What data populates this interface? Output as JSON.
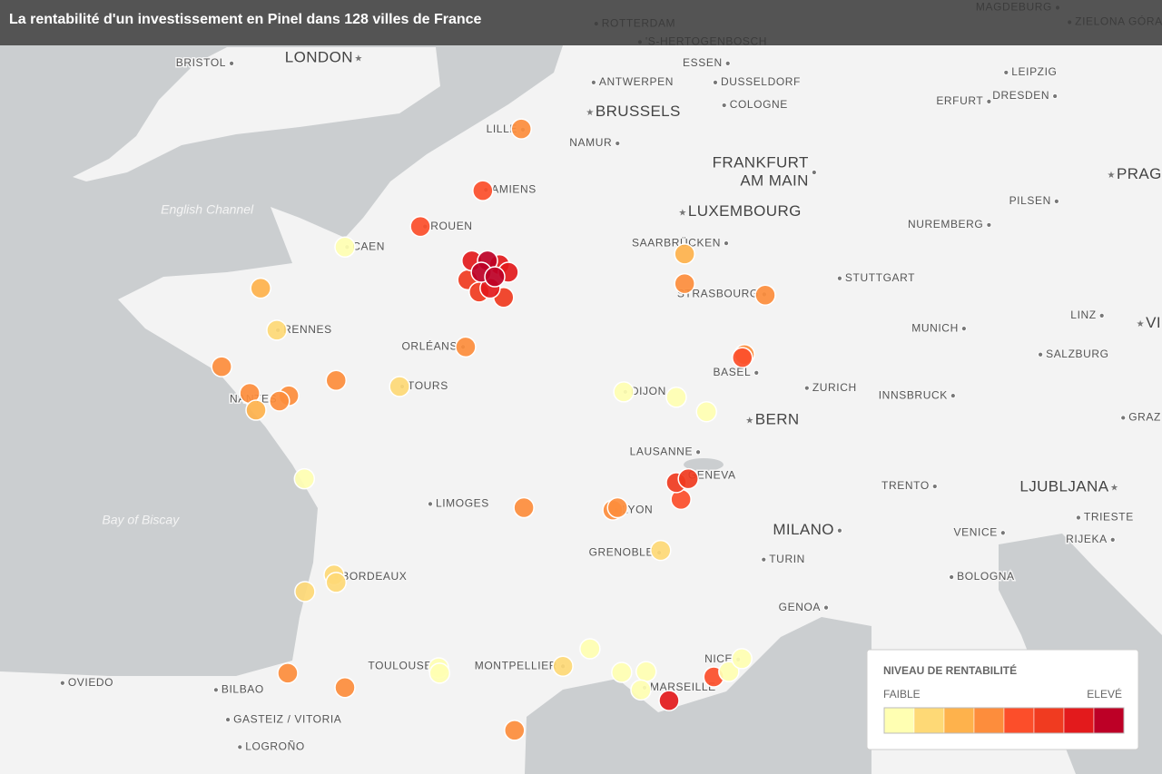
{
  "title": "La rentabilité d'un investissement en Pinel dans 128 villes de France",
  "legend": {
    "title": "NIVEAU DE RENTABILITÉ",
    "low": "FAIBLE",
    "high": "ELEVÉ",
    "colors": [
      "#ffffb2",
      "#fed976",
      "#feb24c",
      "#fd8d3c",
      "#fc4e2a",
      "#f03b20",
      "#e31a1c",
      "#bd0026"
    ]
  },
  "water": [
    {
      "name": "English Channel",
      "lon": -3.04,
      "lat": 49.67
    },
    {
      "name": "Bay of Biscay",
      "lon": -4.32,
      "lat": 45.6
    }
  ],
  "labels": [
    {
      "name": "BRISTOL",
      "lon": -2.57,
      "lat": 51.6,
      "side": "left"
    },
    {
      "name": "LONDON",
      "lon": -0.13,
      "lat": 51.67,
      "side": "left",
      "big": true,
      "capital": true
    },
    {
      "name": "ROTTERDAM",
      "lon": 4.44,
      "lat": 52.12,
      "side": "right"
    },
    {
      "name": "'S-HERTOGENBOSCH",
      "lon": 5.28,
      "lat": 51.88,
      "side": "right"
    },
    {
      "name": "MAGDEBURG",
      "lon": 13.31,
      "lat": 52.33,
      "side": "left"
    },
    {
      "name": "ZIELONA GÓRA",
      "lon": 13.54,
      "lat": 52.14,
      "side": "right"
    },
    {
      "name": "ESSEN",
      "lon": 6.97,
      "lat": 51.6,
      "side": "left"
    },
    {
      "name": "ANTWERPEN",
      "lon": 4.39,
      "lat": 51.35,
      "side": "right"
    },
    {
      "name": "DUSSELDORF",
      "lon": 6.73,
      "lat": 51.35,
      "side": "right"
    },
    {
      "name": "LEIPZIG",
      "lon": 12.32,
      "lat": 51.48,
      "side": "right"
    },
    {
      "name": "DRESDEN",
      "lon": 13.26,
      "lat": 51.17,
      "side": "left"
    },
    {
      "name": "BRUSSELS",
      "lon": 4.32,
      "lat": 50.96,
      "side": "right",
      "big": true,
      "capital": true
    },
    {
      "name": "COLOGNE",
      "lon": 6.9,
      "lat": 51.05,
      "side": "right"
    },
    {
      "name": "ERFURT",
      "lon": 11.99,
      "lat": 51.1,
      "side": "left"
    },
    {
      "name": "LILLE",
      "lon": 3.03,
      "lat": 50.73,
      "side": "left"
    },
    {
      "name": "NAMUR",
      "lon": 4.85,
      "lat": 50.55,
      "side": "left"
    },
    {
      "name": [
        "FRANKFURT",
        "AM MAIN"
      ],
      "lon": 8.63,
      "lat": 50.17,
      "side": "left",
      "big": true
    },
    {
      "name": "PRAG",
      "lon": 14.34,
      "lat": 50.14,
      "side": "right",
      "big": true,
      "capital": true
    },
    {
      "name": "AMIENS",
      "lon": 2.32,
      "lat": 49.94,
      "side": "right"
    },
    {
      "name": "PILSEN",
      "lon": 13.29,
      "lat": 49.79,
      "side": "left"
    },
    {
      "name": "LUXEMBOURG",
      "lon": 6.1,
      "lat": 49.65,
      "side": "right",
      "big": true,
      "capital": true
    },
    {
      "name": "NUREMBERG",
      "lon": 11.99,
      "lat": 49.48,
      "side": "left"
    },
    {
      "name": "ROUEN",
      "lon": 1.15,
      "lat": 49.46,
      "side": "right"
    },
    {
      "name": "SAARBRÜCKEN",
      "lon": 6.94,
      "lat": 49.24,
      "side": "left"
    },
    {
      "name": "CAEN",
      "lon": -0.35,
      "lat": 49.19,
      "side": "right"
    },
    {
      "name": "STUTTGART",
      "lon": 9.12,
      "lat": 48.78,
      "side": "right"
    },
    {
      "name": "STRASBOURG",
      "lon": 7.67,
      "lat": 48.57,
      "side": "left"
    },
    {
      "name": "RENNES",
      "lon": -1.68,
      "lat": 48.1,
      "side": "right"
    },
    {
      "name": "MUNICH",
      "lon": 11.51,
      "lat": 48.12,
      "side": "left"
    },
    {
      "name": "LINZ",
      "lon": 14.16,
      "lat": 48.29,
      "side": "left"
    },
    {
      "name": "VI",
      "lon": 14.9,
      "lat": 48.19,
      "side": "right",
      "big": true,
      "capital": true
    },
    {
      "name": "ORLÉANS",
      "lon": 1.88,
      "lat": 47.88,
      "side": "left"
    },
    {
      "name": "SALZBURG",
      "lon": 12.98,
      "lat": 47.78,
      "side": "right"
    },
    {
      "name": "BASEL",
      "lon": 7.52,
      "lat": 47.54,
      "side": "left"
    },
    {
      "name": "ZURICH",
      "lon": 8.49,
      "lat": 47.34,
      "side": "right"
    },
    {
      "name": "TOURS",
      "lon": 0.71,
      "lat": 47.36,
      "side": "right"
    },
    {
      "name": "DIJON",
      "lon": 5.0,
      "lat": 47.29,
      "side": "right"
    },
    {
      "name": "NANTES",
      "lon": -1.59,
      "lat": 47.19,
      "side": "left"
    },
    {
      "name": "INNSBRUCK",
      "lon": 11.3,
      "lat": 47.24,
      "side": "left"
    },
    {
      "name": "BERN",
      "lon": 7.39,
      "lat": 46.92,
      "side": "right",
      "big": true,
      "capital": true
    },
    {
      "name": "GRAZ",
      "lon": 14.57,
      "lat": 46.95,
      "side": "right"
    },
    {
      "name": "LAUSANNE",
      "lon": 6.4,
      "lat": 46.5,
      "side": "left"
    },
    {
      "name": "GENEVA",
      "lon": 6.1,
      "lat": 46.19,
      "side": "right"
    },
    {
      "name": "TRENTO",
      "lon": 10.95,
      "lat": 46.05,
      "side": "left"
    },
    {
      "name": "LJUBLJANA",
      "lon": 14.4,
      "lat": 46.04,
      "side": "left",
      "big": true,
      "capital": true
    },
    {
      "name": "LIMOGES",
      "lon": 1.25,
      "lat": 45.82,
      "side": "right"
    },
    {
      "name": "LYON",
      "lon": 4.83,
      "lat": 45.74,
      "side": "right"
    },
    {
      "name": "TRIESTE",
      "lon": 13.71,
      "lat": 45.64,
      "side": "right"
    },
    {
      "name": "MILANO",
      "lon": 9.12,
      "lat": 45.47,
      "side": "left",
      "big": true
    },
    {
      "name": "VENICE",
      "lon": 12.26,
      "lat": 45.44,
      "side": "left"
    },
    {
      "name": "RIJEKA",
      "lon": 14.37,
      "lat": 45.35,
      "side": "left"
    },
    {
      "name": "GRENOBLE",
      "lon": 5.65,
      "lat": 45.18,
      "side": "left"
    },
    {
      "name": "TURIN",
      "lon": 7.66,
      "lat": 45.09,
      "side": "right"
    },
    {
      "name": "BORDEAUX",
      "lon": -0.56,
      "lat": 44.86,
      "side": "right"
    },
    {
      "name": "BOLOGNA",
      "lon": 11.27,
      "lat": 44.86,
      "side": "right"
    },
    {
      "name": "GENOA",
      "lon": 8.86,
      "lat": 44.46,
      "side": "left"
    },
    {
      "name": "NICE",
      "lon": 7.17,
      "lat": 43.78,
      "side": "left"
    },
    {
      "name": "TOULOUSE",
      "lon": 1.39,
      "lat": 43.69,
      "side": "left"
    },
    {
      "name": "MONTPELLIER",
      "lon": 3.8,
      "lat": 43.69,
      "side": "left"
    },
    {
      "name": "OVIEDO",
      "lon": -5.82,
      "lat": 43.47,
      "side": "right"
    },
    {
      "name": "BILBAO",
      "lon": -2.87,
      "lat": 43.38,
      "side": "right"
    },
    {
      "name": "MARSEILLE",
      "lon": 5.37,
      "lat": 43.41,
      "side": "right"
    },
    {
      "name": "GASTEIZ / VITORIA",
      "lon": -2.64,
      "lat": 42.99,
      "side": "right"
    },
    {
      "name": "LOGROÑO",
      "lon": -2.41,
      "lat": 42.63,
      "side": "right"
    }
  ],
  "markers": [
    {
      "lon": 3.0,
      "lat": 50.74,
      "level": 3
    },
    {
      "lon": 2.26,
      "lat": 49.93,
      "level": 4
    },
    {
      "lon": 1.06,
      "lat": 49.46,
      "level": 4
    },
    {
      "lon": -0.39,
      "lat": 49.19,
      "level": 0
    },
    {
      "lon": 1.97,
      "lat": 48.76,
      "level": 5
    },
    {
      "lon": 2.66,
      "lat": 48.53,
      "level": 5
    },
    {
      "lon": 2.19,
      "lat": 48.6,
      "level": 5
    },
    {
      "lon": 2.05,
      "lat": 49.01,
      "level": 6
    },
    {
      "lon": 2.58,
      "lat": 48.96,
      "level": 6
    },
    {
      "lon": 2.4,
      "lat": 48.65,
      "level": 6
    },
    {
      "lon": 2.75,
      "lat": 48.86,
      "level": 6
    },
    {
      "lon": 2.35,
      "lat": 49.01,
      "level": 7
    },
    {
      "lon": 2.23,
      "lat": 48.86,
      "level": 7
    },
    {
      "lon": 2.49,
      "lat": 48.8,
      "level": 7
    },
    {
      "lon": -2.01,
      "lat": 48.65,
      "level": 2
    },
    {
      "lon": -1.7,
      "lat": 48.1,
      "level": 1
    },
    {
      "lon": -2.76,
      "lat": 47.62,
      "level": 3
    },
    {
      "lon": -0.56,
      "lat": 47.44,
      "level": 3
    },
    {
      "lon": -2.22,
      "lat": 47.27,
      "level": 3
    },
    {
      "lon": -1.47,
      "lat": 47.24,
      "level": 3
    },
    {
      "lon": -1.65,
      "lat": 47.17,
      "level": 3
    },
    {
      "lon": -2.1,
      "lat": 47.05,
      "level": 2
    },
    {
      "lon": 0.66,
      "lat": 47.36,
      "level": 1
    },
    {
      "lon": 1.93,
      "lat": 47.88,
      "level": 3
    },
    {
      "lon": 6.14,
      "lat": 49.1,
      "level": 2
    },
    {
      "lon": 6.14,
      "lat": 48.71,
      "level": 3
    },
    {
      "lon": 7.69,
      "lat": 48.56,
      "level": 3
    },
    {
      "lon": 7.29,
      "lat": 47.78,
      "level": 3
    },
    {
      "lon": 7.25,
      "lat": 47.74,
      "level": 4
    },
    {
      "lon": 4.97,
      "lat": 47.29,
      "level": 0
    },
    {
      "lon": 5.98,
      "lat": 47.22,
      "level": 0
    },
    {
      "lon": 6.56,
      "lat": 47.03,
      "level": 0
    },
    {
      "lon": -1.17,
      "lat": 46.15,
      "level": 0
    },
    {
      "lon": 3.05,
      "lat": 45.77,
      "level": 3
    },
    {
      "lon": 4.76,
      "lat": 45.74,
      "level": 3
    },
    {
      "lon": 4.85,
      "lat": 45.77,
      "level": 3
    },
    {
      "lon": 6.07,
      "lat": 45.88,
      "level": 4
    },
    {
      "lon": 5.98,
      "lat": 46.1,
      "level": 5
    },
    {
      "lon": 6.21,
      "lat": 46.15,
      "level": 5
    },
    {
      "lon": 5.68,
      "lat": 45.21,
      "level": 1
    },
    {
      "lon": -0.6,
      "lat": 44.89,
      "level": 1
    },
    {
      "lon": -0.56,
      "lat": 44.79,
      "level": 1
    },
    {
      "lon": -1.16,
      "lat": 44.67,
      "level": 1
    },
    {
      "lon": 1.41,
      "lat": 43.67,
      "level": 0
    },
    {
      "lon": 1.43,
      "lat": 43.6,
      "level": 0
    },
    {
      "lon": 3.8,
      "lat": 43.69,
      "level": 1
    },
    {
      "lon": 4.32,
      "lat": 43.92,
      "level": 0
    },
    {
      "lon": 4.93,
      "lat": 43.61,
      "level": 0
    },
    {
      "lon": 5.4,
      "lat": 43.62,
      "level": 0
    },
    {
      "lon": 5.3,
      "lat": 43.38,
      "level": 0
    },
    {
      "lon": 5.84,
      "lat": 43.24,
      "level": 6
    },
    {
      "lon": 6.7,
      "lat": 43.55,
      "level": 4
    },
    {
      "lon": 6.99,
      "lat": 43.62,
      "level": 0
    },
    {
      "lon": 7.24,
      "lat": 43.79,
      "level": 0
    },
    {
      "lon": -1.49,
      "lat": 43.6,
      "level": 3
    },
    {
      "lon": -0.39,
      "lat": 43.41,
      "level": 3
    },
    {
      "lon": 2.87,
      "lat": 42.85,
      "level": 3
    }
  ]
}
